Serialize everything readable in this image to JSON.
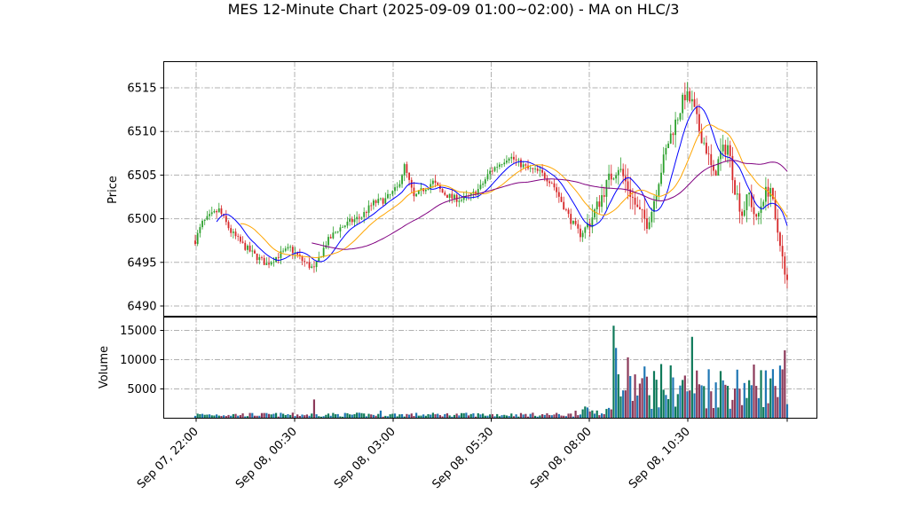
{
  "chart_data": {
    "type": "candlestick",
    "title": "MES 12-Minute Chart (2025-09-09 01:00~02:00) - MA on HLC/3",
    "price_panel": {
      "ylabel": "Price",
      "ylim": [
        6488.5,
        6518
      ],
      "yticks": [
        6490,
        6495,
        6500,
        6505,
        6510,
        6515
      ],
      "grid": true
    },
    "volume_panel": {
      "ylabel": "Volume",
      "ylim": [
        0,
        17000
      ],
      "yticks": [
        5000,
        10000,
        15000
      ],
      "yticklabels": [
        "5000",
        "10000",
        "15000"
      ],
      "grid": true
    },
    "x_ticklabels": [
      "Sep 07, 22:00",
      "Sep 08, 00:30",
      "Sep 08, 03:00",
      "Sep 08, 05:30",
      "Sep 08, 08:00",
      "Sep 08, 10:30"
    ],
    "colors": {
      "up": "#2ca02c",
      "down": "#d62728",
      "ma_fast": "#0000ff",
      "ma_mid": "#ffa500",
      "ma_slow": "#800080",
      "vol_up": "#1f77b4",
      "vol_down": "#8c3a5a",
      "vol_green": "#0f7a5a"
    },
    "price_path": [
      [
        0,
        6497.5
      ],
      [
        3,
        6499.5
      ],
      [
        6,
        6500.2
      ],
      [
        10,
        6501
      ],
      [
        15,
        6498.5
      ],
      [
        20,
        6497
      ],
      [
        25,
        6495.8
      ],
      [
        30,
        6494.8
      ],
      [
        35,
        6495.8
      ],
      [
        40,
        6496.6
      ],
      [
        45,
        6495.2
      ],
      [
        50,
        6494.2
      ],
      [
        55,
        6497.2
      ],
      [
        60,
        6498.8
      ],
      [
        65,
        6499.6
      ],
      [
        70,
        6500.3
      ],
      [
        75,
        6501.8
      ],
      [
        80,
        6502.2
      ],
      [
        85,
        6503.5
      ],
      [
        88,
        6506
      ],
      [
        92,
        6502.4
      ],
      [
        96,
        6503.4
      ],
      [
        100,
        6504.2
      ],
      [
        104,
        6503
      ],
      [
        108,
        6502.4
      ],
      [
        112,
        6502.2
      ],
      [
        116,
        6502.6
      ],
      [
        120,
        6503.6
      ],
      [
        124,
        6505.4
      ],
      [
        128,
        6506.3
      ],
      [
        132,
        6507.2
      ],
      [
        136,
        6506.4
      ],
      [
        140,
        6505.7
      ],
      [
        145,
        6505.3
      ],
      [
        150,
        6504.2
      ],
      [
        154,
        6502
      ],
      [
        158,
        6499.8
      ],
      [
        162,
        6498.2
      ],
      [
        166,
        6499.6
      ],
      [
        170,
        6502
      ],
      [
        174,
        6504.5
      ],
      [
        178,
        6506
      ],
      [
        182,
        6503.6
      ],
      [
        186,
        6501
      ],
      [
        190,
        6499.6
      ],
      [
        192,
        6501
      ],
      [
        195,
        6504.6
      ],
      [
        199,
        6508.8
      ],
      [
        203,
        6511.8
      ],
      [
        206,
        6514.2
      ],
      [
        209,
        6513.2
      ],
      [
        212,
        6510.2
      ],
      [
        215,
        6508
      ],
      [
        218,
        6504.8
      ],
      [
        221,
        6507.4
      ],
      [
        224,
        6508.4
      ],
      [
        227,
        6503.6
      ],
      [
        230,
        6500.6
      ],
      [
        233,
        6502.8
      ],
      [
        236,
        6499.6
      ],
      [
        239,
        6502.6
      ],
      [
        242,
        6503.6
      ],
      [
        244,
        6499.4
      ],
      [
        246,
        6497.6
      ],
      [
        248,
        6493.2
      ],
      [
        249,
        6492.6
      ]
    ]
  }
}
